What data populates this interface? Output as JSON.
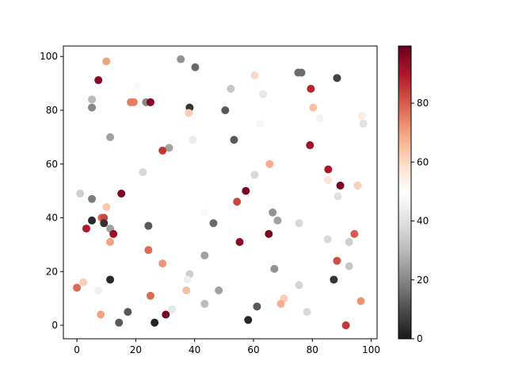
{
  "chart_data": {
    "type": "scatter",
    "x": [
      10,
      7.3,
      5.1,
      5.1,
      11.3,
      18.3,
      19.3,
      23.5,
      25,
      20.5,
      35.3,
      40.2,
      38.3,
      38,
      39.4,
      31.3,
      29.1,
      22.4,
      50.4,
      52.3,
      53.4,
      60.4,
      63.3,
      62.3,
      75.2,
      76.3,
      88.4,
      79.5,
      80.3,
      82.5,
      79.2,
      96.8,
      97.3,
      60.4,
      65.5,
      85.4,
      85.4,
      89.5,
      95.4,
      88.7,
      1.1,
      5.1,
      15.1,
      10,
      5.1,
      8.4,
      9.2,
      9.2,
      3.2,
      11.3,
      12.4,
      11.3,
      24.3,
      43.4,
      46.4,
      57.4,
      54.4,
      66.5,
      68.2,
      75.5,
      55.3,
      65.2,
      85.2,
      92.5,
      94.3,
      24.3,
      43.4,
      29.1,
      88.4,
      67.1,
      38.3,
      37.5,
      11.3,
      2.2,
      0,
      7.3,
      92.5,
      87.3,
      75.5,
      48.2,
      37.2,
      25,
      70.3,
      69.3,
      96.5,
      43.4,
      61.2,
      32.3,
      17.3,
      8.1,
      30.2,
      78.2,
      14.3,
      26.4,
      58.2,
      91.4
    ],
    "y": [
      98.2,
      91.2,
      84,
      81,
      70,
      83,
      83,
      83,
      83,
      89,
      99,
      96,
      81,
      79,
      69,
      66,
      65,
      57,
      80,
      88,
      69,
      93,
      86,
      75,
      94,
      94,
      92,
      88,
      81,
      77,
      67,
      78,
      75,
      56,
      60,
      58,
      54,
      52,
      52,
      48,
      49,
      47,
      49,
      44,
      39,
      40,
      40,
      38,
      36,
      36,
      34,
      31,
      37,
      42,
      38,
      50,
      46,
      42,
      39,
      38,
      31,
      34,
      32,
      31,
      34,
      28,
      26,
      23,
      24,
      21,
      19,
      17,
      17,
      16,
      14,
      13,
      22,
      17,
      15,
      13,
      13,
      11,
      10,
      8,
      9,
      8,
      7,
      6,
      5,
      4,
      4,
      5,
      1,
      1,
      2,
      0
    ],
    "c": [
      70,
      95,
      30,
      20,
      25,
      75,
      75,
      20,
      95,
      48,
      22,
      15,
      5,
      62,
      44,
      25,
      85,
      38,
      12,
      33,
      12,
      60,
      42,
      47,
      15,
      15,
      8,
      88,
      65,
      46,
      92,
      55,
      40,
      38,
      68,
      90,
      57,
      97,
      62,
      40,
      35,
      18,
      96,
      63,
      3,
      78,
      83,
      5,
      90,
      25,
      93,
      70,
      12,
      52,
      15,
      97,
      83,
      22,
      25,
      38,
      95,
      97,
      38,
      35,
      80,
      78,
      25,
      72,
      82,
      22,
      35,
      45,
      3,
      62,
      78,
      45,
      33,
      5,
      37,
      25,
      65,
      78,
      62,
      68,
      72,
      30,
      12,
      42,
      12,
      70,
      97,
      38,
      12,
      2,
      3,
      85
    ],
    "colormap": "RdGy_r",
    "clim": [
      0,
      99.4
    ],
    "colorbar_ticks": [
      0,
      20,
      40,
      60,
      80
    ],
    "xlim": [
      -4.6,
      102.0
    ],
    "xticks": [
      0,
      20,
      40,
      60,
      80,
      100
    ],
    "ylim": [
      -5.0,
      103.9
    ],
    "yticks": [
      0,
      20,
      40,
      60,
      80,
      100
    ]
  }
}
